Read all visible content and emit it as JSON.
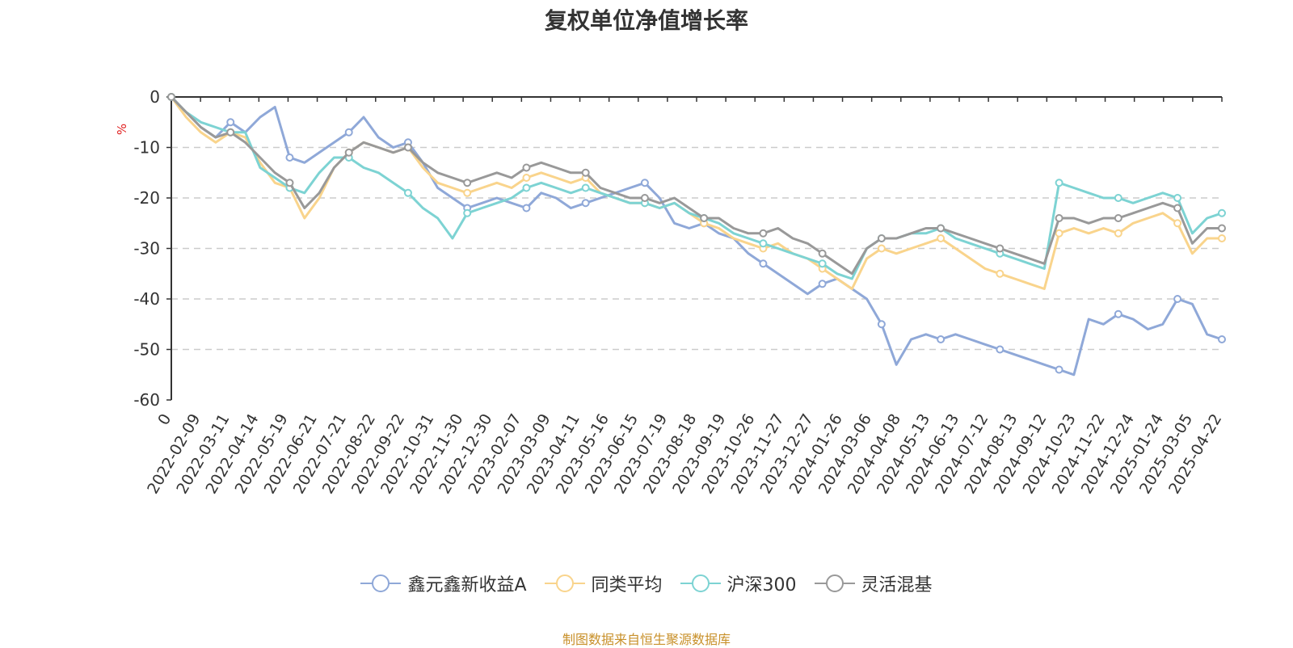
{
  "chart_data": {
    "type": "line",
    "title": "复权单位净值增长率",
    "ylabel": "%",
    "ylim": [
      -60,
      0
    ],
    "yticks": [
      0,
      -10,
      -20,
      -30,
      -40,
      -50,
      -60
    ],
    "grid": true,
    "legend_position": "bottom",
    "x_tick_labels": [
      "0",
      "2022-02-09",
      "2022-03-11",
      "2022-04-14",
      "2022-05-19",
      "2022-06-21",
      "2022-07-21",
      "2022-08-22",
      "2022-09-22",
      "2022-10-31",
      "2022-11-30",
      "2022-12-30",
      "2023-02-07",
      "2023-03-09",
      "2023-04-11",
      "2023-05-16",
      "2023-06-15",
      "2023-07-19",
      "2023-08-18",
      "2023-09-19",
      "2023-10-26",
      "2023-11-27",
      "2023-12-27",
      "2024-01-26",
      "2024-03-06",
      "2024-04-08",
      "2024-05-13",
      "2024-06-13",
      "2024-07-12",
      "2024-08-13",
      "2024-09-12",
      "2024-10-23",
      "2024-11-22",
      "2024-12-24",
      "2025-01-24",
      "2025-03-05",
      "2025-04-22"
    ],
    "series": [
      {
        "name": "鑫元鑫新收益A",
        "color": "#8fa8d8",
        "values": [
          0,
          -3,
          -6,
          -8,
          -5,
          -7,
          -4,
          -2,
          -12,
          -13,
          -11,
          -9,
          -7,
          -4,
          -8,
          -10,
          -9,
          -13,
          -18,
          -20,
          -22,
          -21,
          -20,
          -21,
          -22,
          -19,
          -20,
          -22,
          -21,
          -20,
          -19,
          -18,
          -17,
          -20,
          -25,
          -26,
          -25,
          -27,
          -28,
          -31,
          -33,
          -35,
          -37,
          -39,
          -37,
          -36,
          -38,
          -40,
          -45,
          -53,
          -48,
          -47,
          -48,
          -47,
          -48,
          -49,
          -50,
          -51,
          -52,
          -53,
          -54,
          -55,
          -44,
          -45,
          -43,
          -44,
          -46,
          -45,
          -40,
          -41,
          -47,
          -48
        ]
      },
      {
        "name": "同类平均",
        "color": "#f9d48c",
        "values": [
          0,
          -4,
          -7,
          -9,
          -7,
          -8,
          -13,
          -17,
          -18,
          -24,
          -20,
          -14,
          -11,
          -9,
          -10,
          -11,
          -10,
          -14,
          -17,
          -18,
          -19,
          -18,
          -17,
          -18,
          -16,
          -15,
          -16,
          -17,
          -16,
          -19,
          -20,
          -21,
          -21,
          -22,
          -21,
          -23,
          -25,
          -26,
          -28,
          -29,
          -30,
          -29,
          -31,
          -32,
          -34,
          -36,
          -38,
          -32,
          -30,
          -31,
          -30,
          -29,
          -28,
          -30,
          -32,
          -34,
          -35,
          -36,
          -37,
          -38,
          -27,
          -26,
          -27,
          -26,
          -27,
          -25,
          -24,
          -23,
          -25,
          -31,
          -28,
          -28
        ]
      },
      {
        "name": "沪深300",
        "color": "#7dd3d3",
        "values": [
          0,
          -3,
          -5,
          -6,
          -7,
          -7,
          -14,
          -16,
          -18,
          -19,
          -15,
          -12,
          -12,
          -14,
          -15,
          -17,
          -19,
          -22,
          -24,
          -28,
          -23,
          -22,
          -21,
          -20,
          -18,
          -17,
          -18,
          -19,
          -18,
          -19,
          -20,
          -21,
          -21,
          -22,
          -21,
          -23,
          -24,
          -25,
          -27,
          -28,
          -29,
          -30,
          -31,
          -32,
          -33,
          -35,
          -36,
          -30,
          -28,
          -28,
          -27,
          -27,
          -26,
          -28,
          -29,
          -30,
          -31,
          -32,
          -33,
          -34,
          -17,
          -18,
          -19,
          -20,
          -20,
          -21,
          -20,
          -19,
          -20,
          -27,
          -24,
          -23
        ]
      },
      {
        "name": "灵活混基",
        "color": "#999999",
        "values": [
          0,
          -3,
          -6,
          -8,
          -7,
          -9,
          -12,
          -15,
          -17,
          -22,
          -19,
          -14,
          -11,
          -9,
          -10,
          -11,
          -10,
          -13,
          -15,
          -16,
          -17,
          -16,
          -15,
          -16,
          -14,
          -13,
          -14,
          -15,
          -15,
          -18,
          -19,
          -20,
          -20,
          -21,
          -20,
          -22,
          -24,
          -24,
          -26,
          -27,
          -27,
          -26,
          -28,
          -29,
          -31,
          -33,
          -35,
          -30,
          -28,
          -28,
          -27,
          -26,
          -26,
          -27,
          -28,
          -29,
          -30,
          -31,
          -32,
          -33,
          -24,
          -24,
          -25,
          -24,
          -24,
          -23,
          -22,
          -21,
          -22,
          -29,
          -26,
          -26
        ]
      }
    ]
  },
  "source_note": "制图数据来自恒生聚源数据库"
}
